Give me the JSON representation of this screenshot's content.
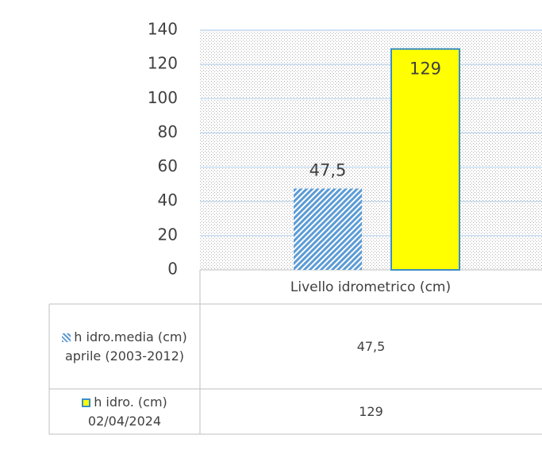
{
  "chart_data": {
    "type": "bar",
    "categories": [
      "Livello idrometrico (cm)"
    ],
    "series": [
      {
        "name": "h idro.media (cm) aprile (2003-2012)",
        "color": "#5b9bd5",
        "values": [
          47.5
        ],
        "value_labels": [
          "47,5"
        ]
      },
      {
        "name": "h idro. (cm) 02/04/2024",
        "color": "#ffff00",
        "values": [
          129
        ],
        "value_labels": [
          "129"
        ]
      }
    ],
    "ylim": [
      0,
      140
    ],
    "yticks": [
      0,
      20,
      40,
      60,
      80,
      100,
      120,
      140
    ],
    "grid": true
  }
}
